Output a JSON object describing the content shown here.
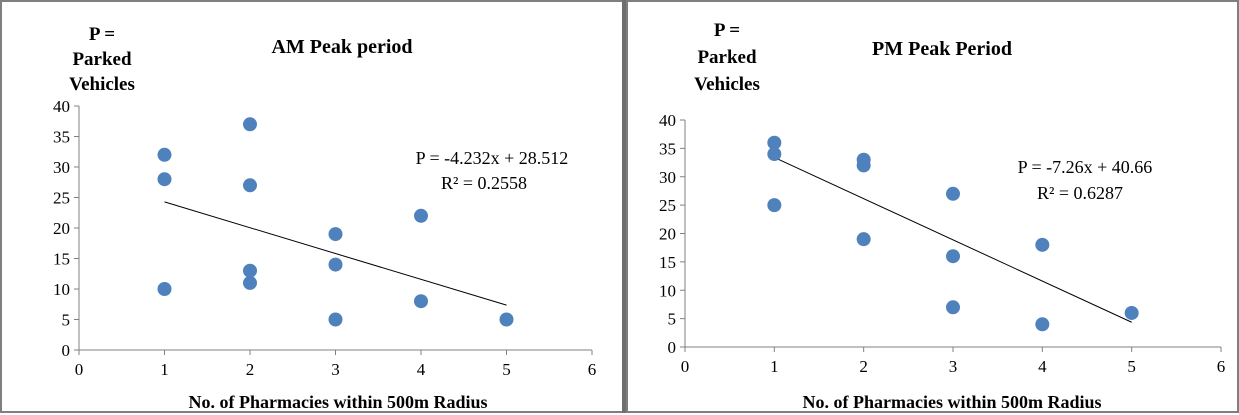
{
  "colors": {
    "point": "#4f81bd",
    "trendline": "#000000",
    "axis": "#808080",
    "frame": "#7f7f7f"
  },
  "chart_data": [
    {
      "type": "scatter",
      "title": "AM Peak period",
      "ylabel_lines": [
        "P =",
        "Parked",
        "Vehicles"
      ],
      "xlabel": "No. of Pharmacies within 500m Radius",
      "xlim": [
        0,
        6
      ],
      "ylim": [
        0,
        40
      ],
      "xticks": [
        "0",
        "1",
        "2",
        "3",
        "4",
        "5",
        "6"
      ],
      "yticks": [
        "0",
        "5",
        "10",
        "15",
        "20",
        "25",
        "30",
        "35",
        "40"
      ],
      "grid": false,
      "points": [
        {
          "x": 1,
          "y": 32
        },
        {
          "x": 1,
          "y": 28
        },
        {
          "x": 1,
          "y": 10
        },
        {
          "x": 2,
          "y": 37
        },
        {
          "x": 2,
          "y": 27
        },
        {
          "x": 2,
          "y": 13
        },
        {
          "x": 2,
          "y": 11
        },
        {
          "x": 3,
          "y": 19
        },
        {
          "x": 3,
          "y": 14
        },
        {
          "x": 3,
          "y": 5
        },
        {
          "x": 4,
          "y": 22
        },
        {
          "x": 4,
          "y": 8
        },
        {
          "x": 5,
          "y": 5
        }
      ],
      "trendline": {
        "slope": -4.232,
        "intercept": 28.512,
        "x_range": [
          1,
          5
        ]
      },
      "equation": "P = -4.232x + 28.512",
      "r_squared": "R² = 0.2558"
    },
    {
      "type": "scatter",
      "title": "PM Peak Period",
      "ylabel_lines": [
        "P =",
        "Parked",
        "Vehicles"
      ],
      "xlabel": "No. of Pharmacies within 500m Radius",
      "xlim": [
        0,
        6
      ],
      "ylim": [
        0,
        40
      ],
      "xticks": [
        "0",
        "1",
        "2",
        "3",
        "4",
        "5",
        "6"
      ],
      "yticks": [
        "0",
        "5",
        "10",
        "15",
        "20",
        "25",
        "30",
        "35",
        "40"
      ],
      "grid": false,
      "points": [
        {
          "x": 1,
          "y": 36
        },
        {
          "x": 1,
          "y": 34
        },
        {
          "x": 1,
          "y": 25
        },
        {
          "x": 2,
          "y": 33
        },
        {
          "x": 2,
          "y": 32
        },
        {
          "x": 2,
          "y": 19
        },
        {
          "x": 3,
          "y": 27
        },
        {
          "x": 3,
          "y": 16
        },
        {
          "x": 3,
          "y": 7
        },
        {
          "x": 4,
          "y": 18
        },
        {
          "x": 4,
          "y": 4
        },
        {
          "x": 5,
          "y": 6
        }
      ],
      "trendline": {
        "slope": -7.26,
        "intercept": 40.66,
        "x_range": [
          1,
          5
        ]
      },
      "equation": "P = -7.26x + 40.66",
      "r_squared": "R² = 0.6287"
    }
  ]
}
